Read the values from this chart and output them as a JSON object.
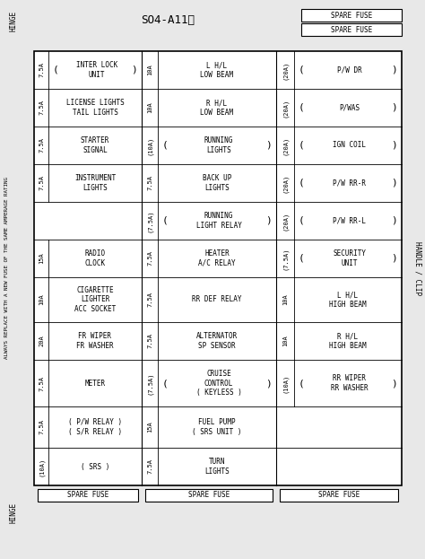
{
  "title": "SO4-A11Ⓑ",
  "background_color": "#e8e8e8",
  "cell_bg": "#ffffff",
  "border_color": "#000000",
  "text_color": "#000000",
  "fig_width": 4.74,
  "fig_height": 6.23,
  "left_label": "ALWAYS REPLACE WITH A NEW FUSE OF THE SAME AMPERAGE RATING",
  "hinge_top": "HINGE",
  "hinge_bottom": "HINGE",
  "handle_clip": "HANDLE / CLIP",
  "spare_fuse_top_right": [
    "SPARE FUSE",
    "SPARE FUSE"
  ],
  "spare_fuse_bottom": [
    "SPARE FUSE",
    "SPARE FUSE",
    "SPARE FUSE"
  ],
  "rows": [
    {
      "col1_amp": "7.5A",
      "col1_text": "INTER LOCK\nUNIT",
      "col1_parens": true,
      "col2_amp": "10A",
      "col2_text": "L H/L\nLOW BEAM",
      "col2_parens": false,
      "col3_amp": "(20A)",
      "col3_text": "P/W DR",
      "col3_parens": true
    },
    {
      "col1_amp": "7.5A",
      "col1_text": "LICENSE LIGHTS\nTAIL LIGHTS",
      "col1_parens": false,
      "col2_amp": "10A",
      "col2_text": "R H/L\nLOW BEAM",
      "col2_parens": false,
      "col3_amp": "(20A)",
      "col3_text": "P/WAS",
      "col3_parens": true
    },
    {
      "col1_amp": "7.5A",
      "col1_text": "STARTER\nSIGNAL",
      "col1_parens": false,
      "col2_amp": "(10A)",
      "col2_text": "RUNNING\nLIGHTS",
      "col2_parens": true,
      "col3_amp": "(20A)",
      "col3_text": "IGN COIL",
      "col3_parens": true
    },
    {
      "col1_amp": "7.5A",
      "col1_text": "INSTRUMENT\nLIGHTS",
      "col1_parens": false,
      "col2_amp": "7.5A",
      "col2_text": "BACK UP\nLIGHTS",
      "col2_parens": false,
      "col3_amp": "(20A)",
      "col3_text": "P/W RR-R",
      "col3_parens": true
    },
    {
      "col1_amp": "",
      "col1_text": "",
      "col1_parens": false,
      "col2_amp": "(7.5A)",
      "col2_text": "RUNNING\nLIGHT RELAY",
      "col2_parens": true,
      "col3_amp": "(20A)",
      "col3_text": "P/W RR-L",
      "col3_parens": true
    },
    {
      "col1_amp": "15A",
      "col1_text": "RADIO\nCLOCK",
      "col1_parens": false,
      "col2_amp": "7.5A",
      "col2_text": "HEATER\nA/C RELAY",
      "col2_parens": false,
      "col3_amp": "(7.5A)",
      "col3_text": "SECURITY\nUNIT",
      "col3_parens": true
    },
    {
      "col1_amp": "10A",
      "col1_text": "CIGARETTE\nLIGHTER\nACC SOCKET",
      "col1_parens": false,
      "col2_amp": "7.5A",
      "col2_text": "RR DEF RELAY",
      "col2_parens": false,
      "col3_amp": "10A",
      "col3_text": "L H/L\nHIGH BEAM",
      "col3_parens": false
    },
    {
      "col1_amp": "20A",
      "col1_text": "FR WIPER\nFR WASHER",
      "col1_parens": false,
      "col2_amp": "7.5A",
      "col2_text": "ALTERNATOR\nSP SENSOR",
      "col2_parens": false,
      "col3_amp": "10A",
      "col3_text": "R H/L\nHIGH BEAM",
      "col3_parens": false
    },
    {
      "col1_amp": "7.5A",
      "col1_text": "METER",
      "col1_parens": false,
      "col2_amp": "(7.5A)",
      "col2_text": "CRUISE\nCONTROL\n( KEYLESS )",
      "col2_parens": true,
      "col3_amp": "(10A)",
      "col3_text": "RR WIPER\nRR WASHER",
      "col3_parens": true
    },
    {
      "col1_amp": "7.5A",
      "col1_text": "( P/W RELAY )\n( S/R RELAY )",
      "col1_parens": false,
      "col2_amp": "15A",
      "col2_text": "FUEL PUMP\n( SRS UNIT )",
      "col2_parens": false,
      "col3_amp": "",
      "col3_text": "",
      "col3_parens": false
    },
    {
      "col1_amp": "(10A)",
      "col1_text": "( SRS )",
      "col1_parens": false,
      "col2_amp": "7.5A",
      "col2_text": "TURN\nLIGHTS",
      "col2_parens": false,
      "col3_amp": "",
      "col3_text": "",
      "col3_parens": false
    }
  ]
}
